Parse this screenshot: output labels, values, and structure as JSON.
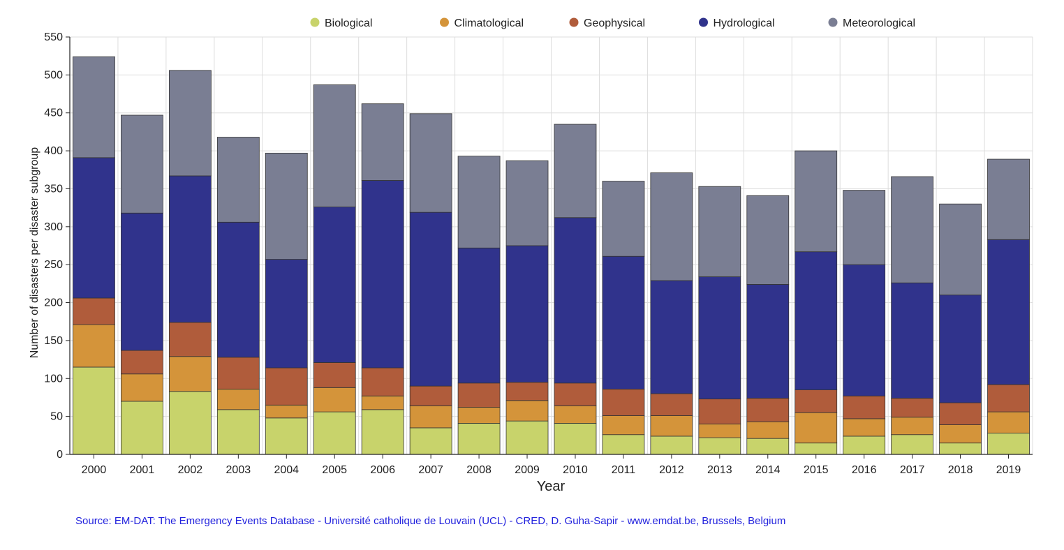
{
  "chart_data": {
    "type": "bar",
    "stacked": true,
    "xlabel": "Year",
    "ylabel": "Number of disasters per  disaster subgroup",
    "ylim": [
      0,
      550
    ],
    "yticks": [
      0,
      50,
      100,
      150,
      200,
      250,
      300,
      350,
      400,
      450,
      500,
      550
    ],
    "grid": true,
    "legend_position": "top",
    "categories": [
      "2000",
      "2001",
      "2002",
      "2003",
      "2004",
      "2005",
      "2006",
      "2007",
      "2008",
      "2009",
      "2010",
      "2011",
      "2012",
      "2013",
      "2014",
      "2015",
      "2016",
      "2017",
      "2018",
      "2019"
    ],
    "series": [
      {
        "name": "Biological",
        "color": "#c8d36b",
        "values": [
          115,
          70,
          83,
          59,
          48,
          56,
          59,
          35,
          41,
          44,
          41,
          26,
          24,
          22,
          21,
          15,
          24,
          26,
          15,
          28
        ]
      },
      {
        "name": "Climatological",
        "color": "#d4943a",
        "values": [
          56,
          36,
          46,
          27,
          17,
          32,
          18,
          29,
          21,
          27,
          23,
          25,
          27,
          18,
          22,
          40,
          23,
          23,
          24,
          28
        ]
      },
      {
        "name": "Geophysical",
        "color": "#b05c3b",
        "values": [
          35,
          31,
          45,
          42,
          49,
          33,
          37,
          26,
          32,
          24,
          30,
          35,
          29,
          33,
          31,
          30,
          30,
          25,
          29,
          36
        ]
      },
      {
        "name": "Hydrological",
        "color": "#30338c",
        "values": [
          185,
          181,
          193,
          178,
          143,
          205,
          247,
          229,
          178,
          180,
          218,
          175,
          149,
          161,
          150,
          182,
          173,
          152,
          142,
          191
        ]
      },
      {
        "name": "Meteorological",
        "color": "#7a7e93",
        "values": [
          133,
          129,
          139,
          112,
          140,
          161,
          101,
          130,
          121,
          112,
          123,
          99,
          142,
          119,
          117,
          133,
          98,
          140,
          120,
          106
        ]
      }
    ]
  },
  "source": "Source: EM-DAT: The Emergency Events Database - Université catholique de Louvain (UCL) - CRED, D. Guha-Sapir - www.emdat.be, Brussels, Belgium"
}
